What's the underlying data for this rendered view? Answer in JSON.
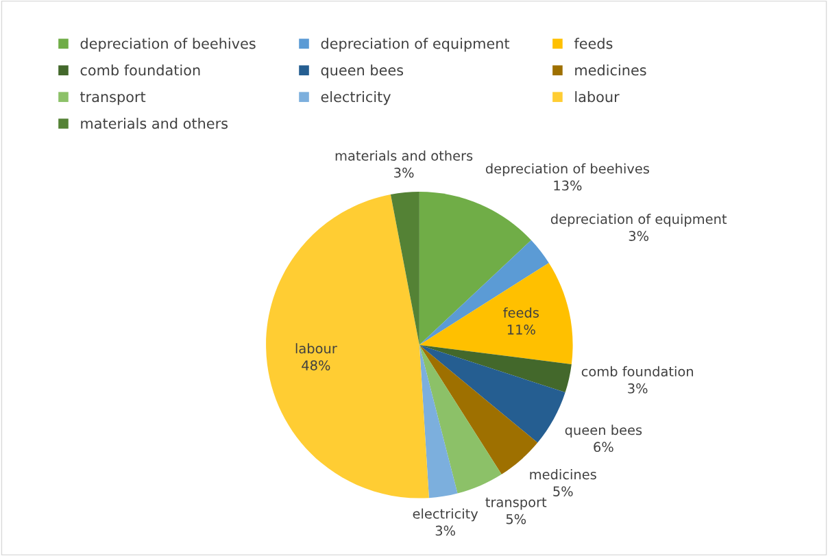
{
  "chart_data": {
    "type": "pie",
    "categories": [
      "depreciation of beehives",
      "depreciation of equipment",
      "feeds",
      "comb foundation",
      "queen bees",
      "medicines",
      "transport",
      "electricity",
      "labour",
      "materials and others"
    ],
    "values": [
      13,
      3,
      11,
      3,
      6,
      5,
      5,
      3,
      48,
      3
    ],
    "colors": [
      "#70ad47",
      "#5b9bd5",
      "#ffc000",
      "#43682b",
      "#255e91",
      "#9e7000",
      "#8cc168",
      "#7cafdd",
      "#ffcd33",
      "#548235"
    ],
    "value_labels": [
      "13%",
      "3%",
      "11%",
      "3%",
      "6%",
      "5%",
      "5%",
      "3%",
      "48%",
      "3%"
    ],
    "legend": "top left"
  }
}
